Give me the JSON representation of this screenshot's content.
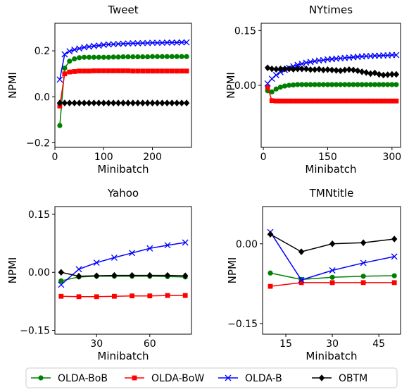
{
  "legend": {
    "entries": [
      {
        "label": "OLDA-BoB",
        "color": "#008000",
        "marker": "circle"
      },
      {
        "label": "OLDA-BoW",
        "color": "#ff0000",
        "marker": "square"
      },
      {
        "label": "OLDA-B",
        "color": "#0000ff",
        "marker": "x"
      },
      {
        "label": "OBTM",
        "color": "#000000",
        "marker": "diamond"
      }
    ]
  },
  "chart_data": [
    {
      "type": "line",
      "title": "Tweet",
      "xlabel": "Minibatch",
      "ylabel": "NPMI",
      "xlim": [
        0,
        280
      ],
      "ylim": [
        -0.22,
        0.32
      ],
      "xticks": [
        0,
        100,
        200
      ],
      "yticks": [
        -0.2,
        0.0,
        0.2
      ],
      "ytick_labels": [
        "−0.2",
        "0.0",
        "0.2"
      ],
      "x": [
        10,
        20,
        30,
        40,
        50,
        60,
        70,
        80,
        90,
        100,
        110,
        120,
        130,
        140,
        150,
        160,
        170,
        180,
        190,
        200,
        210,
        220,
        230,
        240,
        250,
        260,
        270
      ],
      "series": [
        {
          "name": "OLDA-BoB",
          "values": [
            -0.125,
            0.125,
            0.155,
            0.165,
            0.17,
            0.172,
            0.172,
            0.172,
            0.172,
            0.172,
            0.172,
            0.173,
            0.173,
            0.174,
            0.174,
            0.174,
            0.174,
            0.174,
            0.174,
            0.175,
            0.175,
            0.175,
            0.175,
            0.175,
            0.175,
            0.175,
            0.175
          ]
        },
        {
          "name": "OLDA-BoW",
          "values": [
            -0.04,
            0.1,
            0.108,
            0.11,
            0.112,
            0.112,
            0.112,
            0.113,
            0.113,
            0.113,
            0.113,
            0.113,
            0.113,
            0.113,
            0.113,
            0.112,
            0.112,
            0.112,
            0.112,
            0.112,
            0.112,
            0.112,
            0.112,
            0.112,
            0.112,
            0.112,
            0.112
          ]
        },
        {
          "name": "OLDA-B",
          "values": [
            0.075,
            0.185,
            0.198,
            0.205,
            0.21,
            0.215,
            0.218,
            0.221,
            0.223,
            0.226,
            0.228,
            0.229,
            0.23,
            0.231,
            0.232,
            0.233,
            0.233,
            0.234,
            0.234,
            0.235,
            0.235,
            0.235,
            0.236,
            0.236,
            0.236,
            0.237,
            0.237
          ]
        },
        {
          "name": "OBTM",
          "values": [
            -0.027,
            -0.027,
            -0.027,
            -0.027,
            -0.027,
            -0.027,
            -0.027,
            -0.027,
            -0.027,
            -0.027,
            -0.027,
            -0.027,
            -0.027,
            -0.027,
            -0.027,
            -0.027,
            -0.027,
            -0.027,
            -0.027,
            -0.027,
            -0.027,
            -0.027,
            -0.027,
            -0.027,
            -0.027,
            -0.027,
            -0.027
          ]
        }
      ]
    },
    {
      "type": "line",
      "title": "NYtimes",
      "xlabel": "Minibatch",
      "ylabel": "NPMI",
      "xlim": [
        -5,
        320
      ],
      "ylim": [
        -0.17,
        0.17
      ],
      "xticks": [
        0,
        150,
        300
      ],
      "yticks": [
        0.0,
        0.15
      ],
      "ytick_labels": [
        "0.00",
        "0.15"
      ],
      "x": [
        10,
        20,
        30,
        40,
        50,
        60,
        70,
        80,
        90,
        100,
        110,
        120,
        130,
        140,
        150,
        160,
        170,
        180,
        190,
        200,
        210,
        220,
        230,
        240,
        250,
        260,
        270,
        280,
        290,
        300,
        310
      ],
      "series": [
        {
          "name": "OLDA-BoB",
          "values": [
            -0.015,
            -0.018,
            -0.01,
            -0.005,
            -0.002,
            0.0,
            0.001,
            0.002,
            0.002,
            0.002,
            0.002,
            0.002,
            0.002,
            0.002,
            0.002,
            0.002,
            0.002,
            0.002,
            0.002,
            0.002,
            0.002,
            0.002,
            0.002,
            0.002,
            0.002,
            0.002,
            0.002,
            0.002,
            0.002,
            0.002,
            0.002
          ]
        },
        {
          "name": "OLDA-BoW",
          "values": [
            -0.005,
            -0.042,
            -0.043,
            -0.043,
            -0.043,
            -0.043,
            -0.043,
            -0.043,
            -0.043,
            -0.043,
            -0.043,
            -0.043,
            -0.043,
            -0.043,
            -0.043,
            -0.043,
            -0.043,
            -0.043,
            -0.043,
            -0.043,
            -0.043,
            -0.043,
            -0.043,
            -0.043,
            -0.043,
            -0.043,
            -0.043,
            -0.043,
            -0.043,
            -0.043,
            -0.043
          ]
        },
        {
          "name": "OLDA-B",
          "values": [
            0.005,
            0.018,
            0.028,
            0.036,
            0.042,
            0.048,
            0.052,
            0.056,
            0.059,
            0.062,
            0.064,
            0.066,
            0.068,
            0.069,
            0.071,
            0.072,
            0.073,
            0.074,
            0.075,
            0.076,
            0.077,
            0.078,
            0.079,
            0.08,
            0.08,
            0.081,
            0.081,
            0.082,
            0.082,
            0.083,
            0.083
          ]
        },
        {
          "name": "OBTM",
          "values": [
            0.048,
            0.045,
            0.044,
            0.045,
            0.045,
            0.045,
            0.044,
            0.045,
            0.045,
            0.045,
            0.043,
            0.043,
            0.044,
            0.042,
            0.043,
            0.042,
            0.041,
            0.04,
            0.042,
            0.043,
            0.042,
            0.04,
            0.037,
            0.035,
            0.032,
            0.034,
            0.03,
            0.028,
            0.029,
            0.03,
            0.03
          ]
        }
      ]
    },
    {
      "type": "line",
      "title": "Yahoo",
      "xlabel": "Minibatch",
      "ylabel": "NPMI",
      "xlim": [
        6.5,
        83.5
      ],
      "ylim": [
        -0.16,
        0.17
      ],
      "xticks": [
        30,
        60
      ],
      "yticks": [
        -0.15,
        0.0,
        0.15
      ],
      "ytick_labels": [
        "−0.15",
        "0.00",
        "0.15"
      ],
      "x": [
        10,
        20,
        30,
        40,
        50,
        60,
        70,
        80
      ],
      "series": [
        {
          "name": "OLDA-BoB",
          "values": [
            -0.022,
            -0.012,
            -0.01,
            -0.01,
            -0.01,
            -0.01,
            -0.011,
            -0.012
          ]
        },
        {
          "name": "OLDA-BoW",
          "values": [
            -0.062,
            -0.063,
            -0.063,
            -0.062,
            -0.061,
            -0.061,
            -0.06,
            -0.06
          ]
        },
        {
          "name": "OLDA-B",
          "values": [
            -0.032,
            0.008,
            0.025,
            0.038,
            0.05,
            0.062,
            0.07,
            0.077
          ]
        },
        {
          "name": "OBTM",
          "values": [
            0.0,
            -0.01,
            -0.009,
            -0.008,
            -0.008,
            -0.008,
            -0.008,
            -0.009
          ]
        }
      ]
    },
    {
      "type": "line",
      "title": "TMNtitle",
      "xlabel": "Minibatch",
      "ylabel": "NPMI",
      "xlim": [
        7.5,
        52
      ],
      "ylim": [
        -0.17,
        0.07
      ],
      "xticks": [
        15,
        30,
        45
      ],
      "yticks": [
        -0.15,
        0.0
      ],
      "ytick_labels": [
        "−0.15",
        "0.00"
      ],
      "x": [
        10,
        20,
        30,
        40,
        50
      ],
      "series": [
        {
          "name": "OLDA-BoB",
          "values": [
            -0.055,
            -0.067,
            -0.063,
            -0.061,
            -0.06
          ]
        },
        {
          "name": "OLDA-BoW",
          "values": [
            -0.08,
            -0.073,
            -0.073,
            -0.073,
            -0.073
          ]
        },
        {
          "name": "OLDA-B",
          "values": [
            0.022,
            -0.068,
            -0.05,
            -0.036,
            -0.024
          ]
        },
        {
          "name": "OBTM",
          "values": [
            0.018,
            -0.015,
            0.0,
            0.002,
            0.009
          ]
        }
      ]
    }
  ]
}
